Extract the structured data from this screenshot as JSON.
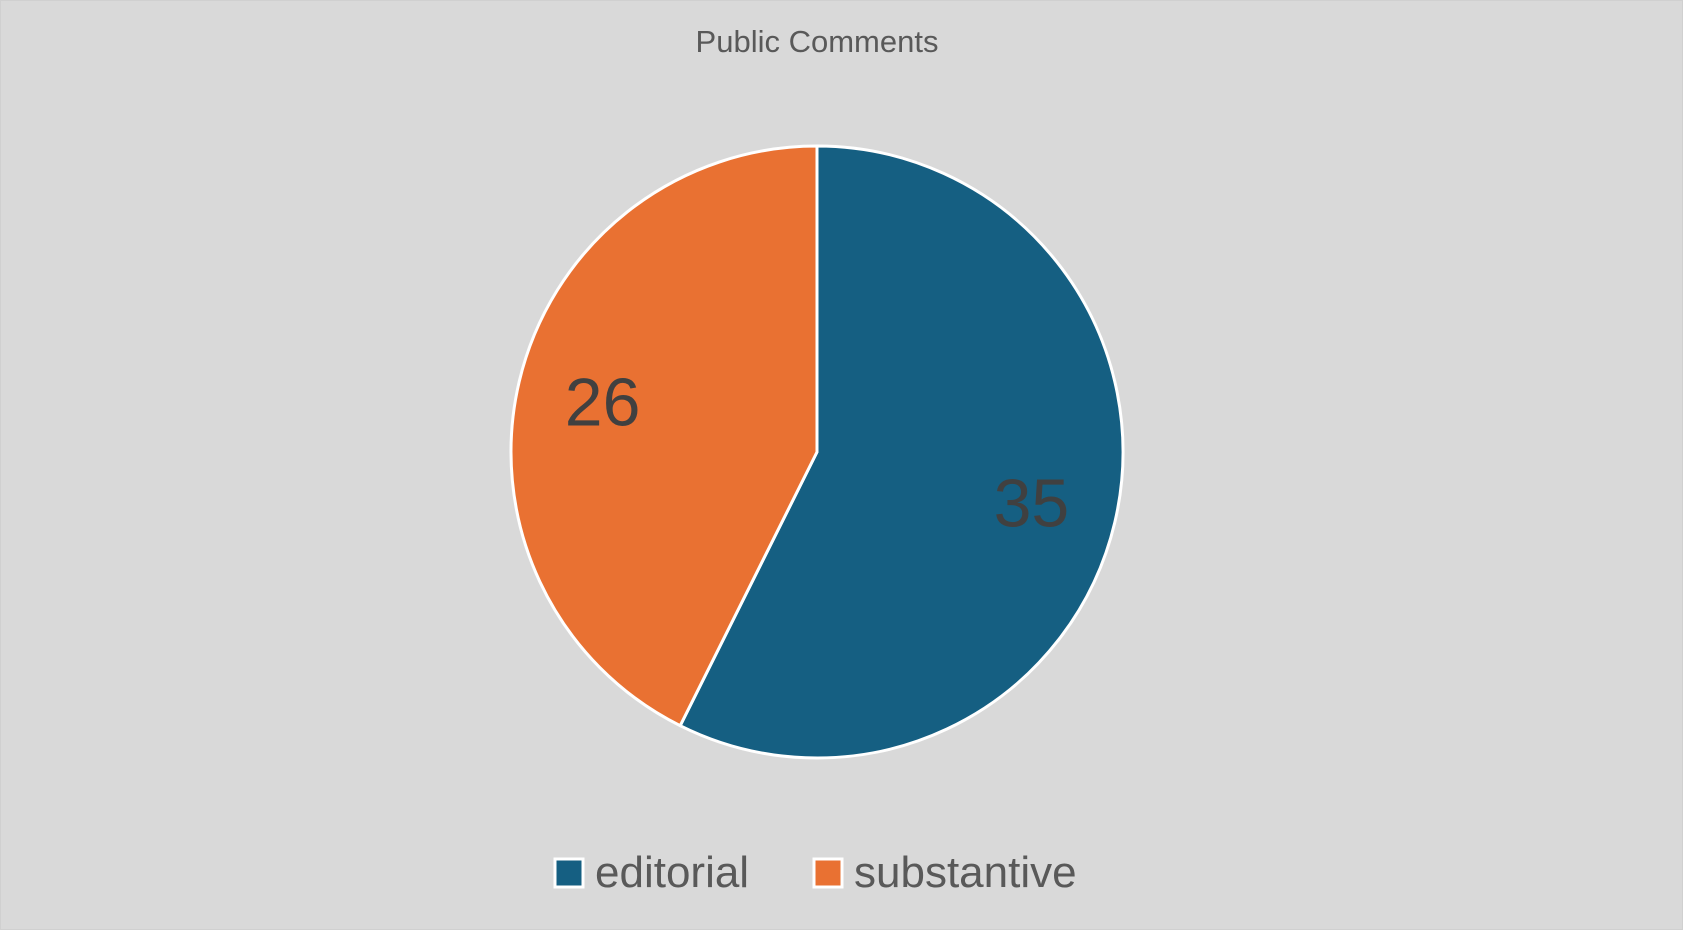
{
  "chart_data": {
    "type": "pie",
    "title": "Public Comments",
    "categories": [
      "editorial",
      "substantive"
    ],
    "values": [
      35,
      26
    ],
    "colors": [
      "#155f82",
      "#e97132"
    ],
    "start_angle_deg": 0,
    "direction": "clockwise",
    "show_data_labels": true,
    "legend": {
      "position": "bottom",
      "entries": [
        "editorial",
        "substantive"
      ]
    }
  }
}
